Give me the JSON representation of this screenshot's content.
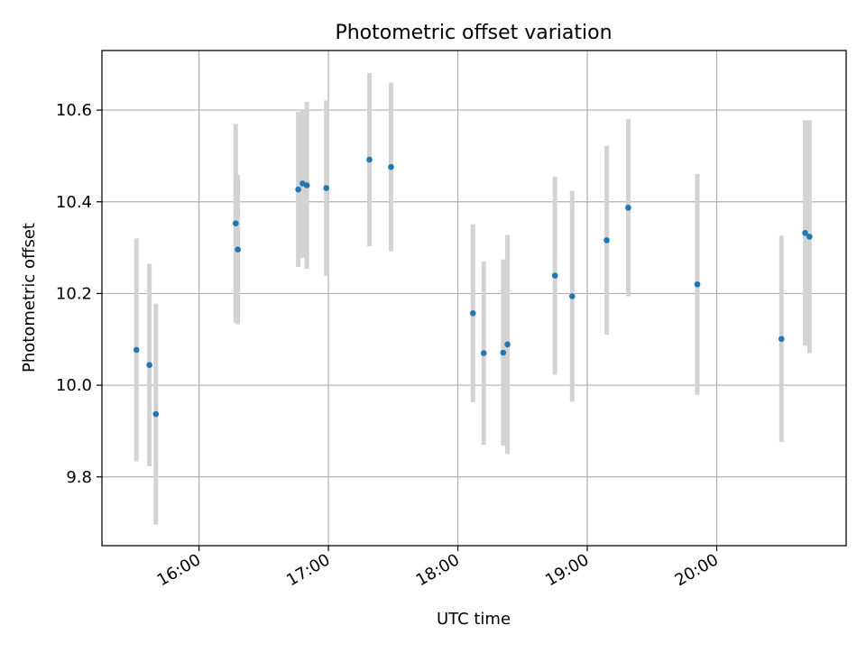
{
  "chart_data": {
    "type": "scatter",
    "title": "Photometric offset variation",
    "xlabel": "UTC time",
    "ylabel": "Photometric offset",
    "x_axis_type": "time",
    "xlim": [
      "15:15",
      "21:00"
    ],
    "ylim": [
      9.65,
      10.73
    ],
    "xticks": [
      "16:00",
      "17:00",
      "18:00",
      "19:00",
      "20:00"
    ],
    "yticks": [
      "9.8",
      "10.0",
      "10.2",
      "10.4",
      "10.6"
    ],
    "grid": true,
    "point_color": "#1f77b4",
    "errorbar_color": "#d3d3d3",
    "points": [
      {
        "x": "15:31",
        "y": 10.077,
        "err": 0.243
      },
      {
        "x": "15:37",
        "y": 10.044,
        "err": 0.221
      },
      {
        "x": "15:40",
        "y": 9.937,
        "err": 0.241
      },
      {
        "x": "16:17",
        "y": 10.353,
        "err": 0.217
      },
      {
        "x": "16:18",
        "y": 10.296,
        "err": 0.163
      },
      {
        "x": "16:46",
        "y": 10.427,
        "err": 0.169
      },
      {
        "x": "16:48",
        "y": 10.44,
        "err": 0.162
      },
      {
        "x": "16:50",
        "y": 10.436,
        "err": 0.182
      },
      {
        "x": "16:59",
        "y": 10.43,
        "err": 0.191
      },
      {
        "x": "17:19",
        "y": 10.492,
        "err": 0.189
      },
      {
        "x": "17:29",
        "y": 10.476,
        "err": 0.184
      },
      {
        "x": "18:07",
        "y": 10.157,
        "err": 0.194
      },
      {
        "x": "18:12",
        "y": 10.07,
        "err": 0.2
      },
      {
        "x": "18:21",
        "y": 10.071,
        "err": 0.203
      },
      {
        "x": "18:23",
        "y": 10.089,
        "err": 0.239
      },
      {
        "x": "18:45",
        "y": 10.239,
        "err": 0.216
      },
      {
        "x": "18:53",
        "y": 10.194,
        "err": 0.23
      },
      {
        "x": "19:09",
        "y": 10.316,
        "err": 0.206
      },
      {
        "x": "19:19",
        "y": 10.387,
        "err": 0.193
      },
      {
        "x": "19:51",
        "y": 10.22,
        "err": 0.241
      },
      {
        "x": "20:30",
        "y": 10.101,
        "err": 0.225
      },
      {
        "x": "20:41",
        "y": 10.332,
        "err": 0.246
      },
      {
        "x": "20:43",
        "y": 10.324,
        "err": 0.254
      }
    ]
  }
}
